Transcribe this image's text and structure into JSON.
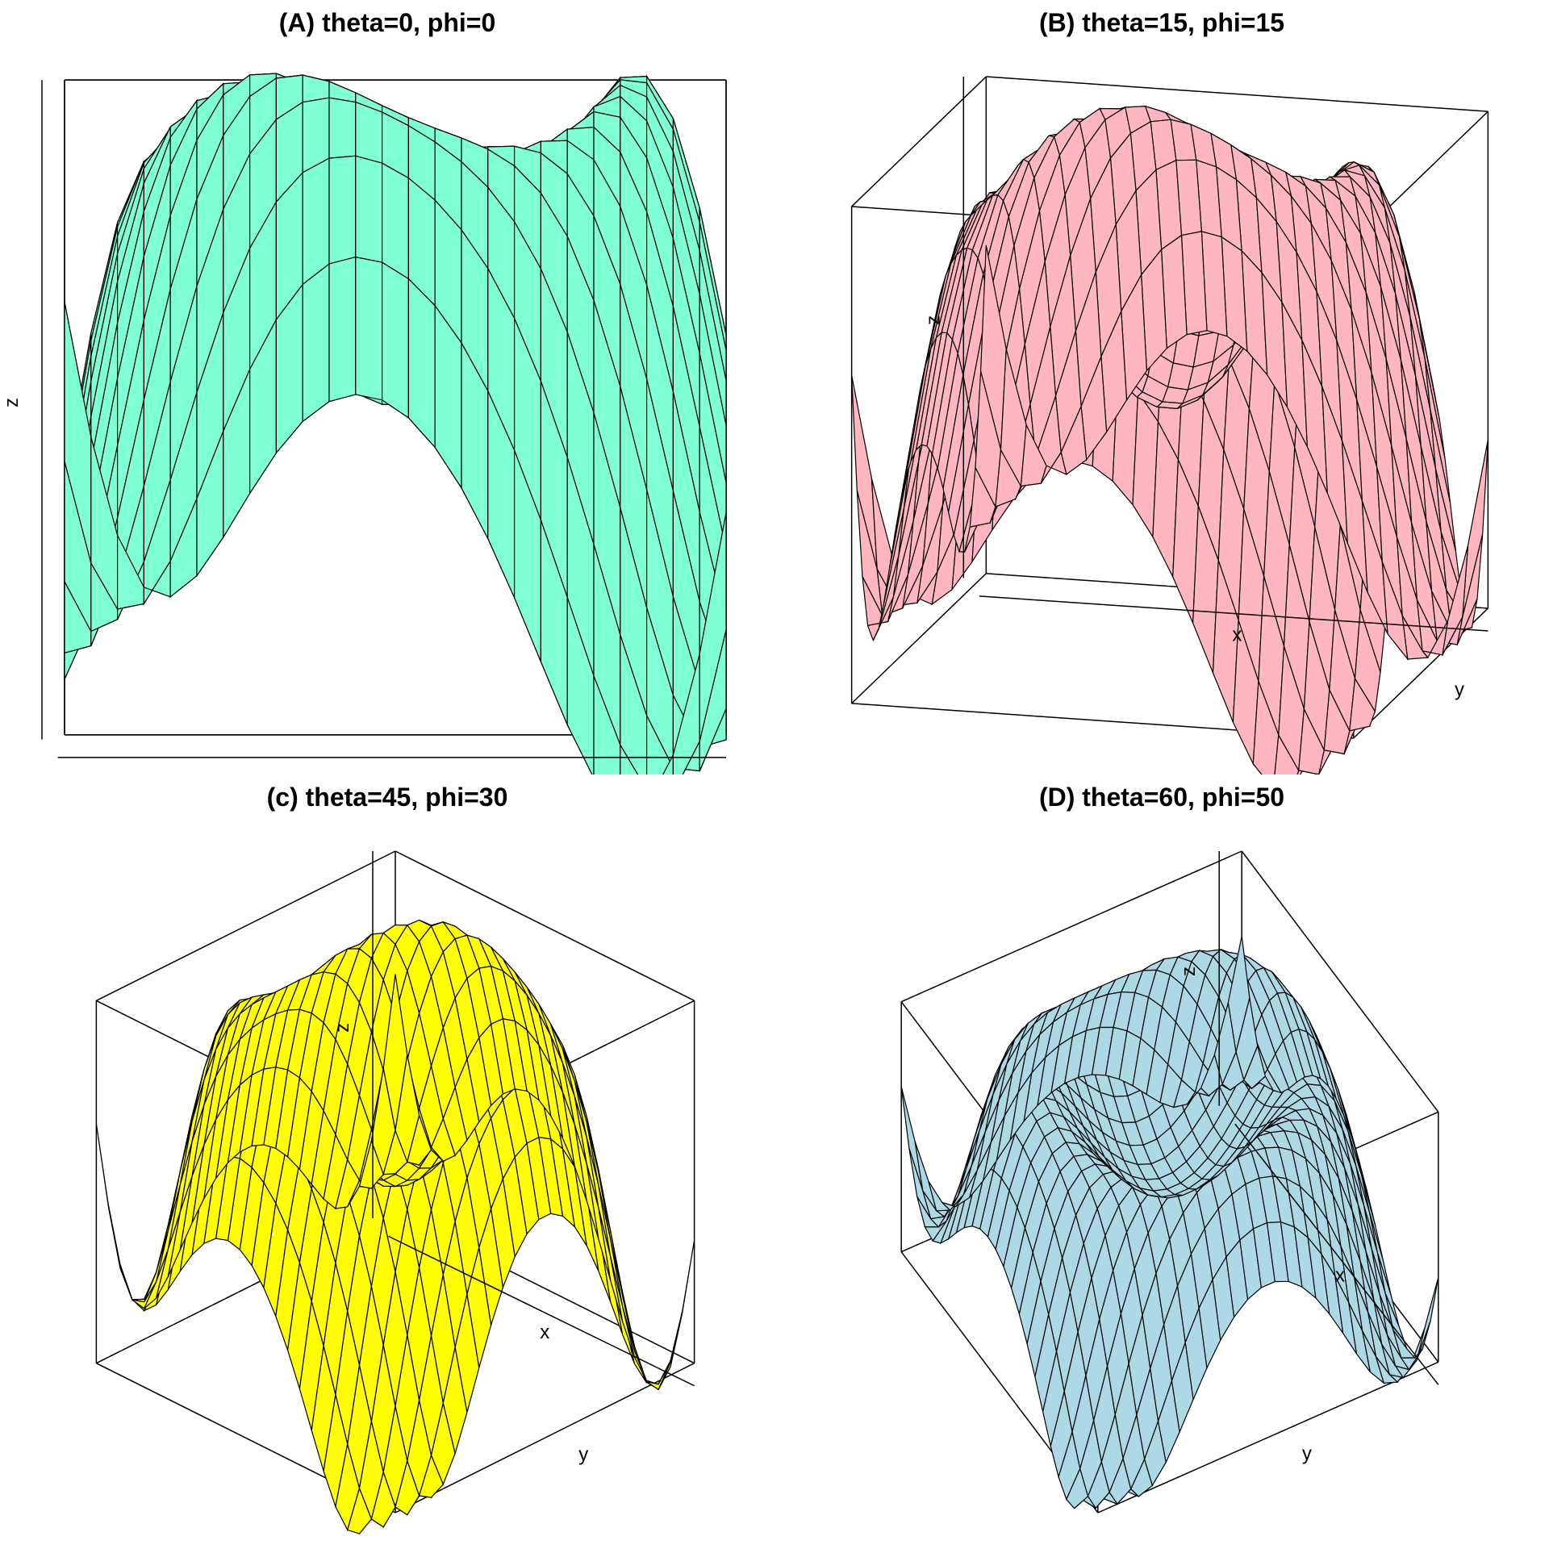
{
  "chart_data": [
    {
      "type": "surface",
      "title": "(A) theta=0, phi=0",
      "theta": 0,
      "phi": 0,
      "surface_color": "#7FFFD4",
      "xlabel": "",
      "ylabel": "",
      "zlabel": "z",
      "grid_n": 25,
      "x_range": [
        -1,
        1
      ],
      "y_range": [
        -1,
        1
      ]
    },
    {
      "type": "surface",
      "title": "(B) theta=15, phi=15",
      "theta": 15,
      "phi": 15,
      "surface_color": "#FFB6C1",
      "xlabel": "x",
      "ylabel": "y",
      "zlabel": "z",
      "grid_n": 25,
      "x_range": [
        -1,
        1
      ],
      "y_range": [
        -1,
        1
      ]
    },
    {
      "type": "surface",
      "title": "(c) theta=45, phi=30",
      "theta": 45,
      "phi": 30,
      "surface_color": "#FFFF00",
      "xlabel": "x",
      "ylabel": "y",
      "zlabel": "z",
      "grid_n": 25,
      "x_range": [
        -1,
        1
      ],
      "y_range": [
        -1,
        1
      ]
    },
    {
      "type": "surface",
      "title": "(D) theta=60, phi=50",
      "theta": 60,
      "phi": 50,
      "surface_color": "#ADD8E6",
      "xlabel": "x",
      "ylabel": "y",
      "zlabel": "z",
      "grid_n": 25,
      "x_range": [
        -1,
        1
      ],
      "y_range": [
        -1,
        1
      ]
    }
  ]
}
